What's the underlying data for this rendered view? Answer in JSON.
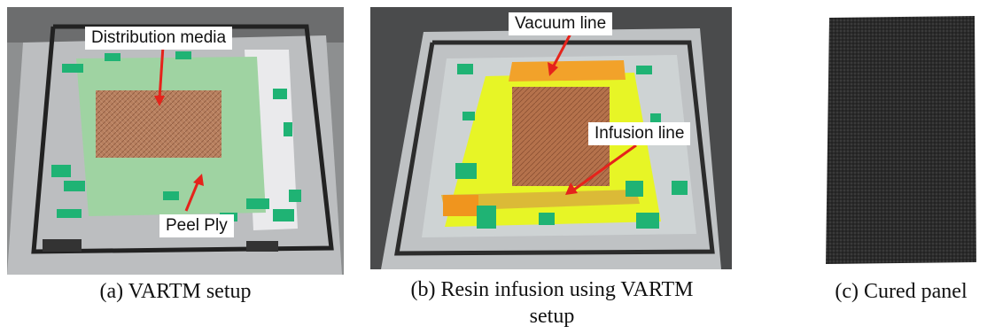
{
  "figures": [
    {
      "caption": "(a) VARTM setup",
      "labels": {
        "top": "Distribution media",
        "bottom": "Peel Ply"
      }
    },
    {
      "caption_line1": "(b) Resin infusion using VARTM",
      "caption_line2": "setup",
      "labels": {
        "top": "Vacuum line",
        "middle": "Infusion line"
      }
    },
    {
      "caption": "(c) Cured panel"
    }
  ],
  "colors": {
    "arrow": "#e5231b",
    "tape": "#1fb374",
    "peel_ply": "#9fd3a2",
    "distribution_media": "#b9805e",
    "vacuum_bag_yellow": "#e7f526",
    "cured_panel": "#2a2a2a"
  }
}
